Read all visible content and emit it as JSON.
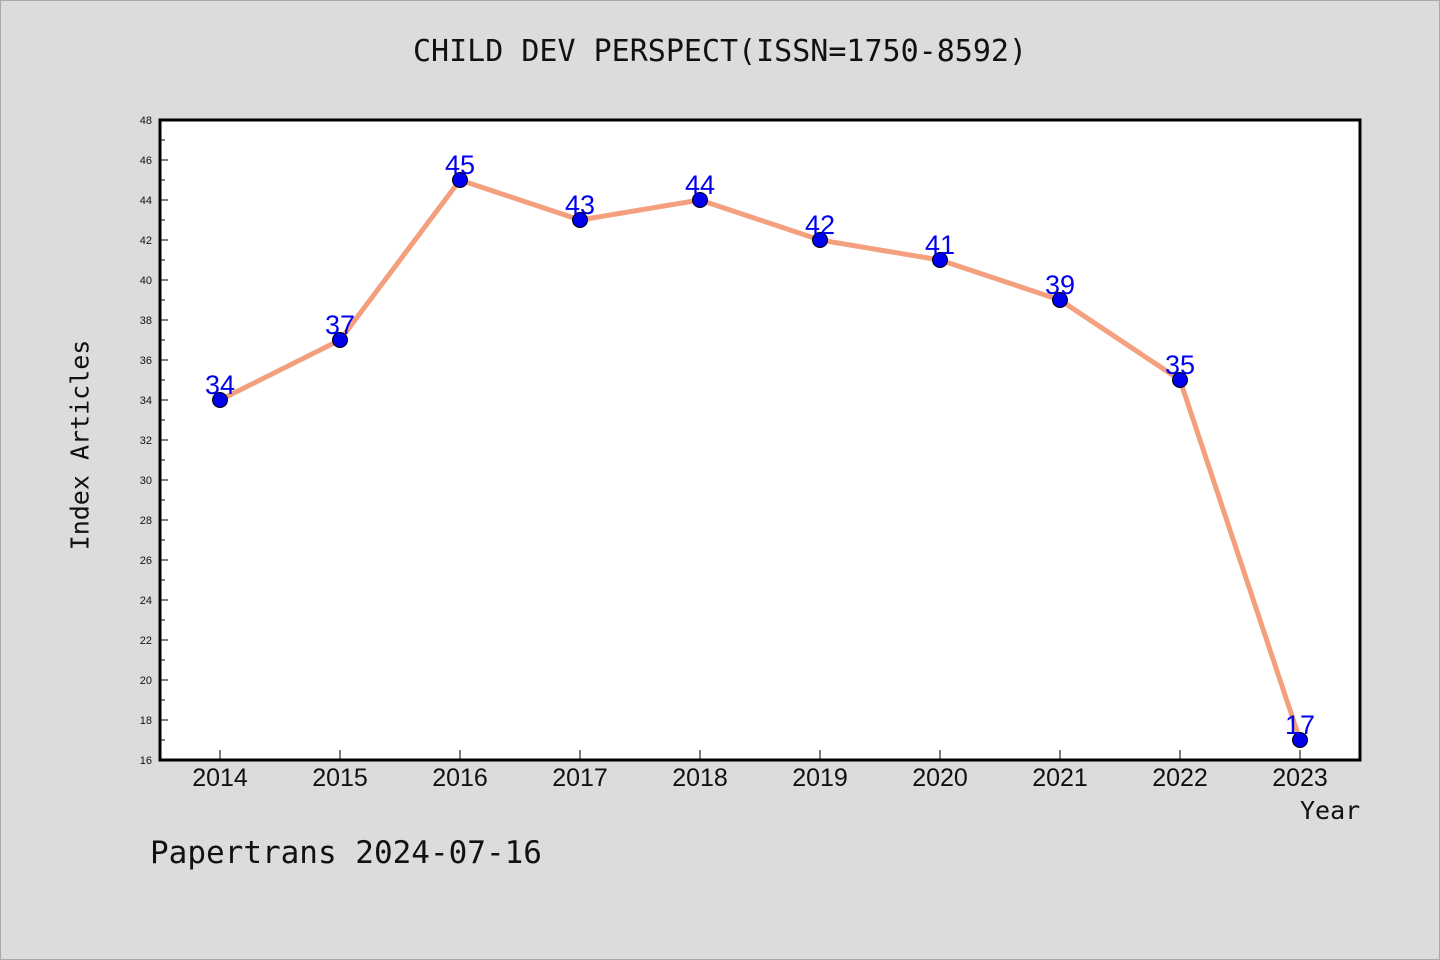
{
  "chart_data": {
    "type": "line",
    "title": "CHILD DEV PERSPECT(ISSN=1750-8592)",
    "xlabel": "Year",
    "ylabel": "Index Articles",
    "x": [
      "2014",
      "2015",
      "2016",
      "2017",
      "2018",
      "2019",
      "2020",
      "2021",
      "2022",
      "2023"
    ],
    "series": [
      {
        "values": [
          34,
          37,
          45,
          43,
          44,
          42,
          41,
          39,
          35,
          17
        ]
      }
    ],
    "ylim": [
      16,
      48
    ],
    "yticks": [
      16,
      18,
      20,
      22,
      24,
      26,
      28,
      30,
      32,
      34,
      36,
      38,
      40,
      42,
      44,
      46,
      48
    ],
    "grid": false,
    "legend": "none",
    "data_labels": true,
    "colors": {
      "line": "#f4a07e",
      "marker": "#0000ee",
      "label": "#0000ee",
      "background": "#dcdcdc",
      "plot_background": "#ffffff"
    }
  },
  "footer": "Papertrans 2024-07-16"
}
